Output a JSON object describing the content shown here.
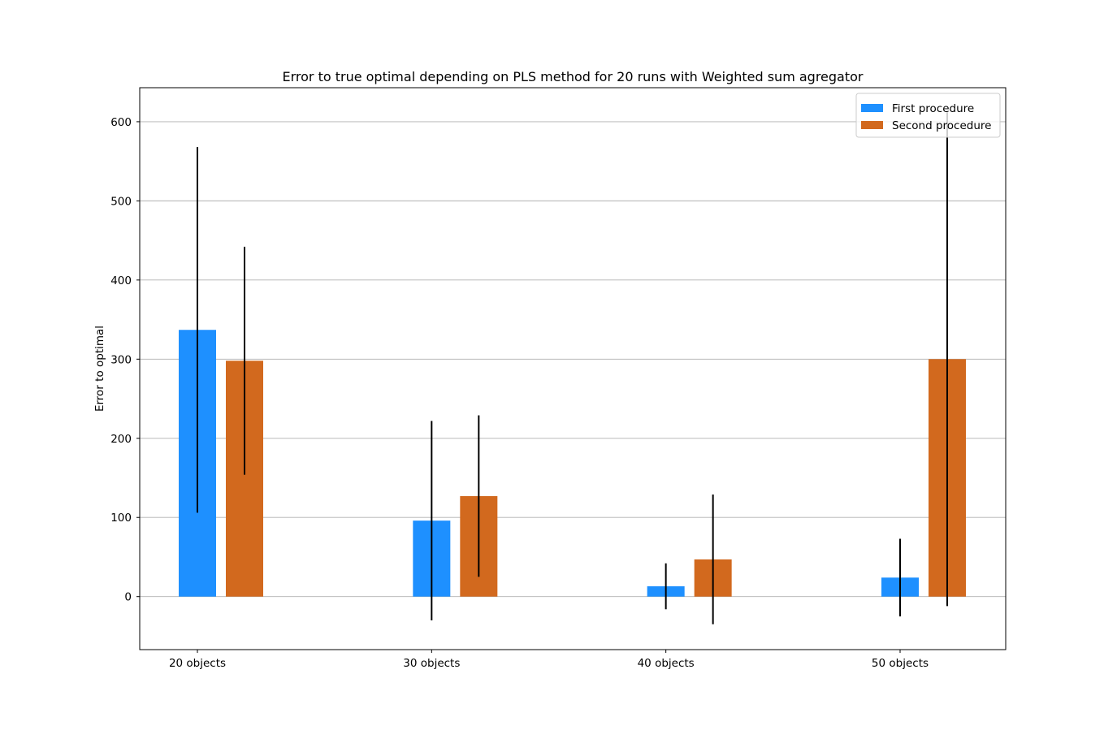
{
  "chart_data": {
    "type": "bar",
    "title": "Error to true optimal depending on PLS method for 20 runs with Weighted sum agregator",
    "xlabel": "",
    "ylabel": "Error to optimal",
    "categories": [
      "20 objects",
      "30 objects",
      "40 objects",
      "50 objects"
    ],
    "series": [
      {
        "name": "First procedure",
        "color": "#1e90ff",
        "values": [
          337,
          96,
          13,
          24
        ],
        "errors": [
          231,
          126,
          29,
          49
        ]
      },
      {
        "name": "Second procedure",
        "color": "#d2691e",
        "values": [
          298,
          127,
          47,
          300
        ],
        "errors": [
          144,
          102,
          82,
          312
        ]
      }
    ],
    "ylim": [
      -67,
      643
    ],
    "yticks": [
      0,
      100,
      200,
      300,
      400,
      500,
      600
    ],
    "grid": "y",
    "legend": "top-right"
  }
}
